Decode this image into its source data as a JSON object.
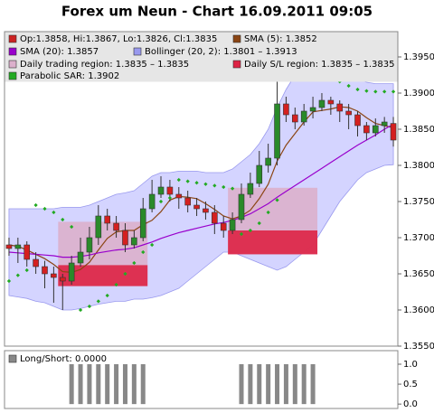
{
  "chart_data": [
    {
      "type": "candlestick",
      "title": "Forex um Neun - Chart 16.09.2011 09:05",
      "ylim": [
        1.355,
        1.3985
      ],
      "yticks": [
        {
          "value": 1.395,
          "label": "1.3950"
        },
        {
          "value": 1.39,
          "label": "1.3900"
        },
        {
          "value": 1.385,
          "label": "1.3850"
        },
        {
          "value": 1.38,
          "label": "1.3800"
        },
        {
          "value": 1.375,
          "label": "1.3750"
        },
        {
          "value": 1.37,
          "label": "1.3700"
        },
        {
          "value": 1.365,
          "label": "1.3650"
        },
        {
          "value": 1.36,
          "label": "1.3600"
        },
        {
          "value": 1.355,
          "label": "1.3550"
        }
      ],
      "series": [
        {
          "type": "ohlc",
          "name": "Op:1.3858, Hi:1.3867, Lo:1.3826, Cl:1.3835",
          "color": "#cc2222",
          "up_color": "#2a8a2a",
          "down_color": "#d42020",
          "open": [
            1.369,
            1.3685,
            1.369,
            1.367,
            1.366,
            1.365,
            1.3645,
            1.364,
            1.3665,
            1.368,
            1.37,
            1.373,
            1.372,
            1.371,
            1.369,
            1.37,
            1.374,
            1.376,
            1.377,
            1.376,
            1.3755,
            1.3745,
            1.374,
            1.3735,
            1.372,
            1.371,
            1.3725,
            1.376,
            1.3775,
            1.38,
            1.381,
            1.3885,
            1.387,
            1.386,
            1.3875,
            1.388,
            1.389,
            1.3885,
            1.3875,
            1.387,
            1.3855,
            1.3845,
            1.3855,
            1.3858
          ],
          "high": [
            1.37,
            1.37,
            1.3695,
            1.368,
            1.3668,
            1.366,
            1.365,
            1.3675,
            1.37,
            1.3715,
            1.3745,
            1.374,
            1.373,
            1.372,
            1.371,
            1.3755,
            1.378,
            1.3785,
            1.378,
            1.377,
            1.3765,
            1.3755,
            1.375,
            1.3745,
            1.373,
            1.3735,
            1.3775,
            1.379,
            1.382,
            1.383,
            1.394,
            1.3895,
            1.388,
            1.3885,
            1.3895,
            1.39,
            1.3895,
            1.389,
            1.3885,
            1.3875,
            1.386,
            1.3865,
            1.3867,
            1.3867
          ],
          "low": [
            1.3675,
            1.3665,
            1.366,
            1.365,
            1.363,
            1.361,
            1.36,
            1.3635,
            1.366,
            1.367,
            1.369,
            1.371,
            1.37,
            1.368,
            1.3685,
            1.3695,
            1.3735,
            1.3755,
            1.375,
            1.374,
            1.3735,
            1.373,
            1.3725,
            1.3705,
            1.37,
            1.3705,
            1.372,
            1.3755,
            1.377,
            1.379,
            1.38,
            1.386,
            1.385,
            1.3855,
            1.3865,
            1.3875,
            1.387,
            1.386,
            1.385,
            1.384,
            1.3835,
            1.384,
            1.3845,
            1.3826
          ],
          "close": [
            1.3685,
            1.369,
            1.367,
            1.366,
            1.365,
            1.3645,
            1.364,
            1.3665,
            1.368,
            1.37,
            1.373,
            1.372,
            1.371,
            1.369,
            1.37,
            1.374,
            1.376,
            1.377,
            1.376,
            1.3755,
            1.3745,
            1.374,
            1.3735,
            1.372,
            1.371,
            1.3725,
            1.376,
            1.3775,
            1.38,
            1.381,
            1.3885,
            1.387,
            1.386,
            1.3875,
            1.388,
            1.389,
            1.3885,
            1.3875,
            1.387,
            1.3855,
            1.3845,
            1.3855,
            1.386,
            1.3835
          ]
        },
        {
          "type": "line",
          "name": "SMA (5): 1.3852",
          "color": "#8b4513",
          "values": [
            1.369,
            1.3688,
            1.3683,
            1.3677,
            1.3671,
            1.3663,
            1.3653,
            1.3652,
            1.3656,
            1.3666,
            1.3683,
            1.3699,
            1.3708,
            1.371,
            1.371,
            1.3718,
            1.3724,
            1.3736,
            1.3752,
            1.3757,
            1.3756,
            1.3754,
            1.3747,
            1.3739,
            1.373,
            1.3726,
            1.373,
            1.3738,
            1.3754,
            1.3774,
            1.3806,
            1.3828,
            1.3844,
            1.386,
            1.3874,
            1.3876,
            1.3878,
            1.3881,
            1.388,
            1.3875,
            1.3866,
            1.3858,
            1.3855,
            1.3852
          ]
        },
        {
          "type": "line",
          "name": "SMA (20): 1.3857",
          "color": "#9900cc",
          "values": [
            1.368,
            1.3679,
            1.3678,
            1.3677,
            1.3676,
            1.3675,
            1.3673,
            1.3673,
            1.3674,
            1.3676,
            1.3679,
            1.3681,
            1.3683,
            1.3684,
            1.3686,
            1.369,
            1.3694,
            1.3699,
            1.3703,
            1.3707,
            1.371,
            1.3713,
            1.3716,
            1.3719,
            1.3721,
            1.3724,
            1.3728,
            1.3733,
            1.374,
            1.3747,
            1.3756,
            1.3764,
            1.3772,
            1.378,
            1.3788,
            1.3796,
            1.3804,
            1.3812,
            1.382,
            1.3828,
            1.3835,
            1.3842,
            1.385,
            1.3857
          ]
        },
        {
          "type": "band",
          "name": "Bollinger (20, 2): 1.3801 – 1.3913",
          "color": "#9999ee",
          "upper": [
            1.374,
            1.374,
            1.374,
            1.374,
            1.374,
            1.374,
            1.3742,
            1.3742,
            1.3742,
            1.3745,
            1.375,
            1.3755,
            1.376,
            1.3762,
            1.3765,
            1.3775,
            1.3785,
            1.379,
            1.379,
            1.3792,
            1.3792,
            1.3792,
            1.379,
            1.379,
            1.379,
            1.3795,
            1.3805,
            1.3815,
            1.383,
            1.385,
            1.388,
            1.3905,
            1.3925,
            1.3935,
            1.3935,
            1.3935,
            1.393,
            1.393,
            1.3925,
            1.392,
            1.3915,
            1.3913,
            1.3913,
            1.3913
          ],
          "lower": [
            1.362,
            1.3618,
            1.3616,
            1.3612,
            1.361,
            1.3605,
            1.36,
            1.36,
            1.3602,
            1.3605,
            1.3608,
            1.361,
            1.3612,
            1.3612,
            1.3615,
            1.3615,
            1.3617,
            1.362,
            1.3625,
            1.363,
            1.364,
            1.365,
            1.366,
            1.367,
            1.368,
            1.368,
            1.3675,
            1.367,
            1.3665,
            1.366,
            1.3655,
            1.366,
            1.367,
            1.368,
            1.369,
            1.371,
            1.373,
            1.375,
            1.3765,
            1.378,
            1.379,
            1.3795,
            1.38,
            1.3801
          ]
        },
        {
          "type": "region",
          "name": "Daily trading region: 1.3835 – 1.3835",
          "color": "#dcb0cc",
          "regions": [
            {
              "from": 6,
              "to": 15,
              "low": 1.3633,
              "high": 1.3722
            },
            {
              "from": 25,
              "to": 34,
              "low": 1.3677,
              "high": 1.3769
            }
          ]
        },
        {
          "type": "region",
          "name": "Daily S/L region: 1.3835 – 1.3835",
          "color": "#dd2244",
          "regions": [
            {
              "from": 6,
              "to": 15,
              "low": 1.3633,
              "high": 1.3662
            },
            {
              "from": 25,
              "to": 34,
              "low": 1.3677,
              "high": 1.371
            }
          ]
        },
        {
          "type": "dots",
          "name": "Parabolic SAR: 1.3902",
          "color": "#22aa22",
          "values": [
            1.364,
            1.3648,
            1.3655,
            1.3745,
            1.374,
            1.3735,
            1.3725,
            1.3715,
            1.36,
            1.3605,
            1.3612,
            1.362,
            1.3635,
            1.365,
            1.3665,
            1.368,
            1.369,
            1.375,
            1.3755,
            1.378,
            1.3778,
            1.3776,
            1.3774,
            1.3772,
            1.377,
            1.3768,
            1.3705,
            1.371,
            1.372,
            1.3735,
            1.3752,
            1.396,
            1.3955,
            1.3948,
            1.394,
            1.3932,
            1.3924,
            1.3916,
            1.391,
            1.3905,
            1.3903,
            1.3902,
            1.3902,
            1.3902
          ]
        }
      ]
    },
    {
      "type": "bar",
      "name": "Long/Short: 0.0000",
      "color": "#888888",
      "ylim": [
        -0.11,
        1.34
      ],
      "yticks": [
        {
          "value": 1,
          "label": "1.0"
        },
        {
          "value": 0.5,
          "label": "0.5"
        },
        {
          "value": 0,
          "label": "0.0"
        }
      ],
      "values": [
        0,
        0,
        0,
        0,
        0,
        0,
        0,
        1,
        1,
        1,
        1,
        1,
        1,
        1,
        1,
        1,
        0,
        0,
        0,
        0,
        0,
        0,
        0,
        0,
        0,
        0,
        1,
        1,
        1,
        1,
        1,
        1,
        1,
        1,
        1,
        0,
        0,
        0,
        0,
        0,
        0,
        0,
        0,
        0
      ]
    }
  ]
}
